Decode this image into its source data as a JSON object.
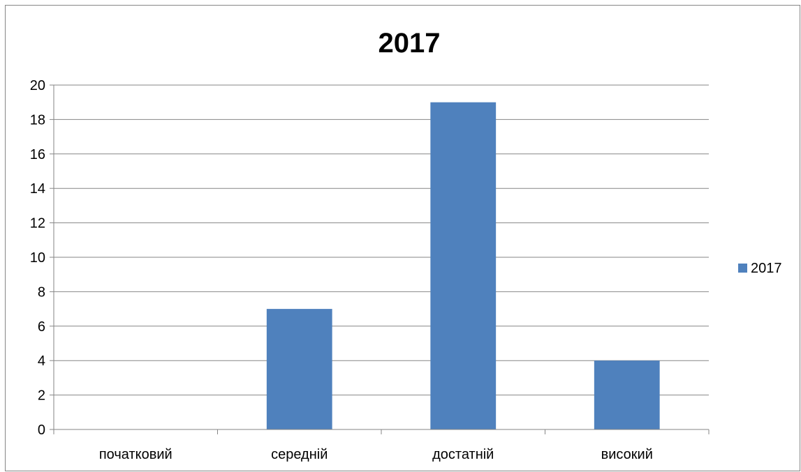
{
  "chart_data": {
    "type": "bar",
    "title": "2017",
    "xlabel": "",
    "ylabel": "",
    "categories": [
      "початковий",
      "середній",
      "достатній",
      "високий"
    ],
    "series": [
      {
        "name": "2017",
        "values": [
          0,
          7,
          19,
          4
        ],
        "color": "#4F81BD"
      }
    ],
    "ylim": [
      0,
      20
    ],
    "yticks": [
      0,
      2,
      4,
      6,
      8,
      10,
      12,
      14,
      16,
      18,
      20
    ],
    "ytick_labels": [
      "0",
      "2",
      "4",
      "6",
      "8",
      "10",
      "12",
      "14",
      "16",
      "18",
      "20"
    ],
    "grid": true,
    "legend": "right"
  }
}
